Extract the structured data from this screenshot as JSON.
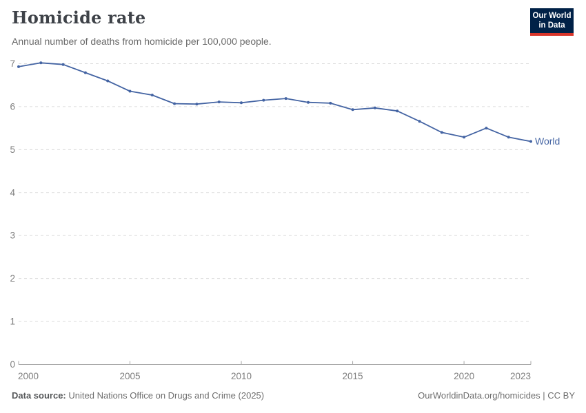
{
  "header": {
    "title": "Homicide rate",
    "subtitle": "Annual number of deaths from homicide per 100,000 people."
  },
  "logo": {
    "line1": "Our World",
    "line2": "in Data"
  },
  "footer": {
    "source_label": "Data source:",
    "source_text": "United Nations Office on Drugs and Crime (2025)",
    "credit": "OurWorldinData.org/homicides | CC BY"
  },
  "colors": {
    "series": "#4464a3",
    "logo_bg": "#002147",
    "logo_red": "#d8352a",
    "grid": "#dcdcdc",
    "axis": "#a7a7a7",
    "tick_label": "#7e7e7e",
    "title": "#3e4248",
    "subtitle": "#696969",
    "footer": "#6e6e6e"
  },
  "chart_data": {
    "type": "line",
    "title": "Homicide rate",
    "subtitle": "Annual number of deaths from homicide per 100,000 people.",
    "xlabel": "",
    "ylabel": "",
    "ylim": [
      0,
      7
    ],
    "yticks": [
      0,
      1,
      2,
      3,
      4,
      5,
      6,
      7
    ],
    "xticks": [
      2000,
      2005,
      2010,
      2015,
      2020,
      2023
    ],
    "grid": "horizontal-dashed",
    "legend": "end-of-line-label",
    "x": [
      2000,
      2001,
      2002,
      2003,
      2004,
      2005,
      2006,
      2007,
      2008,
      2009,
      2010,
      2011,
      2012,
      2013,
      2014,
      2015,
      2016,
      2017,
      2018,
      2019,
      2020,
      2021,
      2022,
      2023
    ],
    "series": [
      {
        "name": "World",
        "values": [
          6.93,
          7.02,
          6.98,
          6.79,
          6.6,
          6.36,
          6.27,
          6.07,
          6.06,
          6.11,
          6.09,
          6.15,
          6.19,
          6.1,
          6.08,
          5.93,
          5.97,
          5.9,
          5.66,
          5.4,
          5.29,
          5.5,
          5.29,
          5.19
        ]
      }
    ]
  }
}
